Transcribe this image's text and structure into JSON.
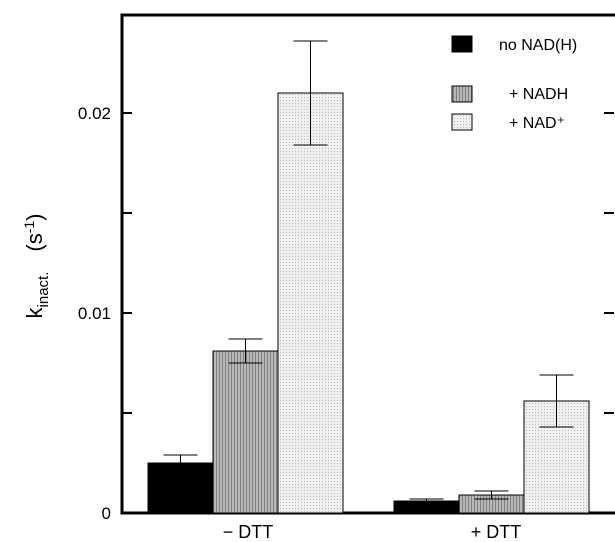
{
  "chart_data": {
    "type": "bar",
    "categories": [
      "− DTT",
      "+ DTT"
    ],
    "series": [
      {
        "name": "no NAD(H)",
        "values": [
          0.0025,
          0.0006
        ],
        "errors": [
          0.0004,
          0.0001
        ],
        "color": "#000000",
        "pattern": "solid"
      },
      {
        "name": "+ NADH",
        "values": [
          0.0081,
          0.0009
        ],
        "errors": [
          0.0006,
          0.0002
        ],
        "color": "#aaaaaa",
        "pattern": "vertical-stripes"
      },
      {
        "name": "+ NAD⁺",
        "values": [
          0.021,
          0.0056
        ],
        "errors": [
          0.0026,
          0.0013
        ],
        "color": "#e6e6e6",
        "pattern": "dots"
      }
    ],
    "yticks": [
      "0",
      "0.01",
      "0.02"
    ],
    "ylabel_main": "k",
    "ylabel_sub": "inact.",
    "ylabel_unit_left": "(s",
    "ylabel_unit_sup": "-1",
    "ylabel_unit_right": ")",
    "ylim": [
      0,
      0.02475
    ],
    "legend_position": "top-right",
    "grid": false
  }
}
